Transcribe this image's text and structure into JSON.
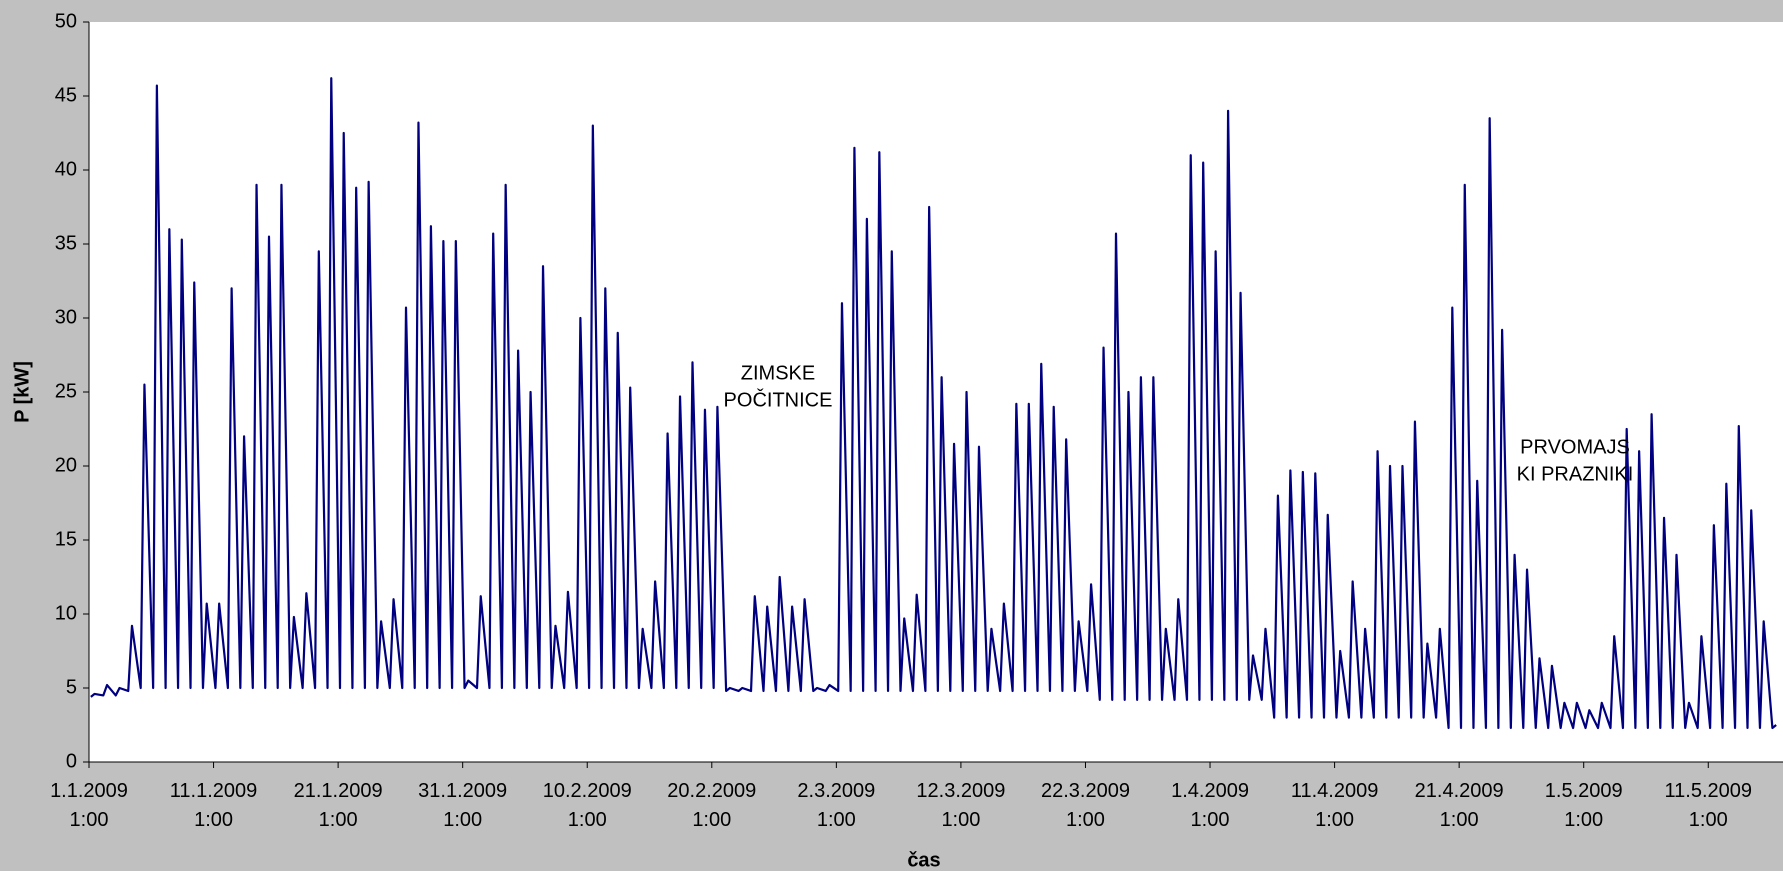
{
  "chart_data": {
    "type": "line",
    "ylabel": "P [kW]",
    "xlabel": "čas",
    "color": "#000080",
    "xlim": [
      0,
      136
    ],
    "ylim": [
      0,
      50
    ],
    "yticks": [
      0,
      5,
      10,
      15,
      20,
      25,
      30,
      35,
      40,
      45,
      50
    ],
    "xticks": [
      {
        "value": 0,
        "label": "1.1.2009 1:00"
      },
      {
        "value": 10,
        "label": "11.1.2009 1:00"
      },
      {
        "value": 20,
        "label": "21.1.2009 1:00"
      },
      {
        "value": 30,
        "label": "31.1.2009 1:00"
      },
      {
        "value": 40,
        "label": "10.2.2009 1:00"
      },
      {
        "value": 50,
        "label": "20.2.2009 1:00"
      },
      {
        "value": 60,
        "label": "2.3.2009 1:00"
      },
      {
        "value": 70,
        "label": "12.3.2009 1:00"
      },
      {
        "value": 80,
        "label": "22.3.2009 1:00"
      },
      {
        "value": 90,
        "label": "1.4.2009 1:00"
      },
      {
        "value": 100,
        "label": "11.4.2009 1:00"
      },
      {
        "value": 110,
        "label": "21.4.2009 1:00"
      },
      {
        "value": 120,
        "label": "1.5.2009 1:00"
      },
      {
        "value": 130,
        "label": "11.5.2009 1:00"
      }
    ],
    "annotations": [
      [
        "ZIMSKE",
        "POČITNICE"
      ],
      [
        "PRVOMAJS",
        "KI PRAZNIKI"
      ]
    ],
    "x": [
      0.15,
      0.45,
      1.15,
      1.45,
      2.15,
      2.45,
      3.15,
      3.45,
      4.15,
      4.45,
      5.15,
      5.45,
      6.15,
      6.45,
      7.15,
      7.45,
      8.15,
      8.45,
      9.15,
      9.45,
      10.15,
      10.45,
      11.15,
      11.45,
      12.15,
      12.45,
      13.15,
      13.45,
      14.15,
      14.45,
      15.15,
      15.45,
      16.15,
      16.45,
      17.15,
      17.45,
      18.15,
      18.45,
      19.15,
      19.45,
      20.15,
      20.45,
      21.15,
      21.45,
      22.15,
      22.45,
      23.15,
      23.45,
      24.15,
      24.45,
      25.15,
      25.45,
      26.15,
      26.45,
      27.15,
      27.45,
      28.15,
      28.45,
      29.15,
      29.45,
      30.15,
      30.45,
      31.15,
      31.45,
      32.15,
      32.45,
      33.15,
      33.45,
      34.15,
      34.45,
      35.15,
      35.45,
      36.15,
      36.45,
      37.15,
      37.45,
      38.15,
      38.45,
      39.15,
      39.45,
      40.15,
      40.45,
      41.15,
      41.45,
      42.15,
      42.45,
      43.15,
      43.45,
      44.15,
      44.45,
      45.15,
      45.45,
      46.15,
      46.45,
      47.15,
      47.45,
      48.15,
      48.45,
      49.15,
      49.45,
      50.15,
      50.45,
      51.15,
      51.45,
      52.15,
      52.45,
      53.15,
      53.45,
      54.15,
      54.45,
      55.15,
      55.45,
      56.15,
      56.45,
      57.15,
      57.45,
      58.15,
      58.45,
      59.15,
      59.45,
      60.15,
      60.45,
      61.15,
      61.45,
      62.15,
      62.45,
      63.15,
      63.45,
      64.15,
      64.45,
      65.15,
      65.45,
      66.15,
      66.45,
      67.15,
      67.45,
      68.15,
      68.45,
      69.15,
      69.45,
      70.15,
      70.45,
      71.15,
      71.45,
      72.15,
      72.45,
      73.15,
      73.45,
      74.15,
      74.45,
      75.15,
      75.45,
      76.15,
      76.45,
      77.15,
      77.45,
      78.15,
      78.45,
      79.15,
      79.45,
      80.15,
      80.45,
      81.15,
      81.45,
      82.15,
      82.45,
      83.15,
      83.45,
      84.15,
      84.45,
      85.15,
      85.45,
      86.15,
      86.45,
      87.15,
      87.45,
      88.15,
      88.45,
      89.15,
      89.45,
      90.15,
      90.45,
      91.15,
      91.45,
      92.15,
      92.45,
      93.15,
      93.45,
      94.15,
      94.45,
      95.15,
      95.45,
      96.15,
      96.45,
      97.15,
      97.45,
      98.15,
      98.45,
      99.15,
      99.45,
      100.15,
      100.45,
      101.15,
      101.45,
      102.15,
      102.45,
      103.15,
      103.45,
      104.15,
      104.45,
      105.15,
      105.45,
      106.15,
      106.45,
      107.15,
      107.45,
      108.15,
      108.45,
      109.15,
      109.45,
      110.15,
      110.45,
      111.15,
      111.45,
      112.15,
      112.45,
      113.15,
      113.45,
      114.15,
      114.45,
      115.15,
      115.45,
      116.15,
      116.45,
      117.15,
      117.45,
      118.15,
      118.45,
      119.15,
      119.45,
      120.15,
      120.45,
      121.15,
      121.45,
      122.15,
      122.45,
      123.15,
      123.45,
      124.15,
      124.45,
      125.15,
      125.45,
      126.15,
      126.45,
      127.15,
      127.45,
      128.15,
      128.45,
      129.15,
      129.45,
      130.15,
      130.45,
      131.15,
      131.45,
      132.15,
      132.45,
      133.15,
      133.45,
      134.15,
      134.45,
      135.15,
      135.45
    ],
    "values": [
      4.4,
      4.6,
      4.5,
      5.2,
      4.5,
      5,
      4.8,
      9.2,
      5,
      25.5,
      5,
      45.7,
      5,
      36,
      5,
      35.3,
      5,
      32.4,
      5,
      10.7,
      5,
      10.7,
      5,
      32,
      5,
      22,
      5,
      39,
      5,
      35.5,
      5,
      39,
      5,
      9.8,
      5,
      11.4,
      5,
      34.5,
      5,
      46.2,
      5,
      42.5,
      5,
      38.8,
      5,
      39.2,
      5,
      9.5,
      5,
      11,
      5,
      30.7,
      5,
      43.2,
      5,
      36.2,
      5,
      35.2,
      5,
      35.2,
      5,
      5.5,
      5,
      11.2,
      5,
      35.7,
      5,
      39,
      5,
      27.8,
      5,
      25,
      5,
      33.5,
      5,
      9.2,
      5,
      11.5,
      5,
      30,
      5,
      43,
      5,
      32,
      5,
      29,
      5,
      25.3,
      5,
      9,
      5,
      12.2,
      5,
      22.2,
      5,
      24.7,
      5,
      27,
      5,
      23.8,
      5,
      24,
      4.8,
      5,
      4.8,
      5,
      4.8,
      11.2,
      4.8,
      10.5,
      4.8,
      12.5,
      4.8,
      10.5,
      4.8,
      11,
      4.8,
      5,
      4.8,
      5.2,
      4.8,
      31,
      4.8,
      41.5,
      4.8,
      36.7,
      4.8,
      41.2,
      4.8,
      34.5,
      4.8,
      9.7,
      4.8,
      11.3,
      4.8,
      37.5,
      4.8,
      26,
      4.8,
      21.5,
      4.8,
      25,
      4.8,
      21.3,
      4.8,
      9,
      4.8,
      10.7,
      4.8,
      24.2,
      4.8,
      24.2,
      4.8,
      26.9,
      4.8,
      24,
      4.8,
      21.8,
      4.8,
      9.5,
      4.8,
      12,
      4.2,
      28,
      4.2,
      35.7,
      4.2,
      25,
      4.2,
      26,
      4.2,
      26,
      4.2,
      9,
      4.2,
      11,
      4.2,
      41,
      4.2,
      40.5,
      4.2,
      34.5,
      4.2,
      44,
      4.2,
      31.7,
      4.2,
      7.2,
      4.2,
      9,
      3,
      18,
      3,
      19.7,
      3,
      19.6,
      3,
      19.5,
      3,
      16.7,
      3,
      7.5,
      3,
      12.2,
      3,
      9,
      3,
      21,
      3,
      20,
      3,
      20,
      3,
      23,
      3,
      8,
      3,
      9,
      2.3,
      30.7,
      2.3,
      39,
      2.3,
      19,
      2.3,
      43.5,
      2.3,
      29.2,
      2.3,
      14,
      2.3,
      13,
      2.3,
      7,
      2.3,
      6.5,
      2.3,
      4,
      2.3,
      4,
      2.3,
      3.5,
      2.3,
      4,
      2.3,
      8.5,
      2.3,
      22.5,
      2.3,
      21,
      2.3,
      23.5,
      2.3,
      16.5,
      2.3,
      14,
      2.3,
      4,
      2.3,
      8.5,
      2.3,
      16,
      2.3,
      18.8,
      2.3,
      22.7,
      2.3,
      17,
      2.3,
      9.5,
      2.3,
      2.5
    ]
  }
}
